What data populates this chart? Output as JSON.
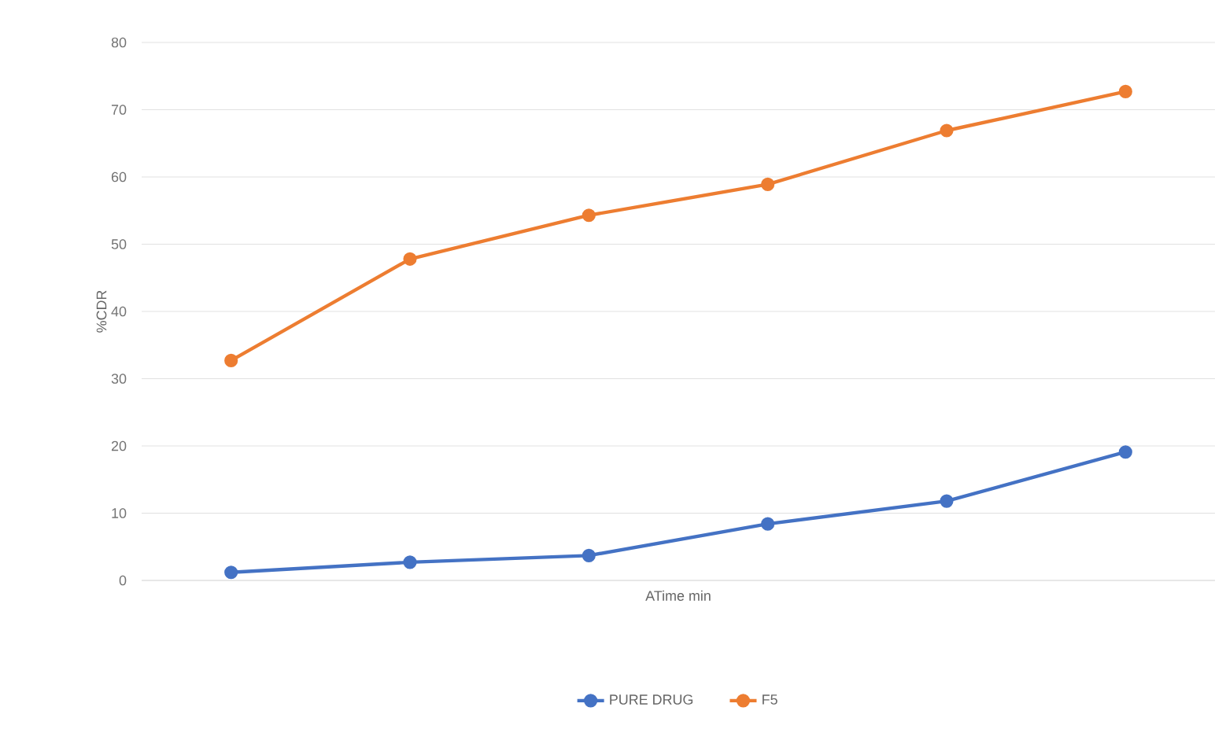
{
  "chart_data": {
    "type": "line",
    "xlabel": "ATime min",
    "ylabel": "%CDR",
    "categories": [
      null,
      null,
      null,
      null,
      null,
      null
    ],
    "series": [
      {
        "name": "PURE DRUG",
        "color": "#4472c4",
        "values": [
          1.2,
          2.7,
          3.7,
          8.4,
          11.8,
          19.1
        ]
      },
      {
        "name": "F5",
        "color": "#ed7d31",
        "values": [
          32.7,
          47.8,
          54.3,
          58.9,
          66.9,
          72.7
        ]
      }
    ],
    "ylim": [
      0,
      80
    ],
    "yticks": [
      0,
      10,
      20,
      30,
      40,
      50,
      60,
      70,
      80
    ],
    "grid": "y",
    "legend": "bottom",
    "marker": "circle",
    "line_style": "solid"
  }
}
